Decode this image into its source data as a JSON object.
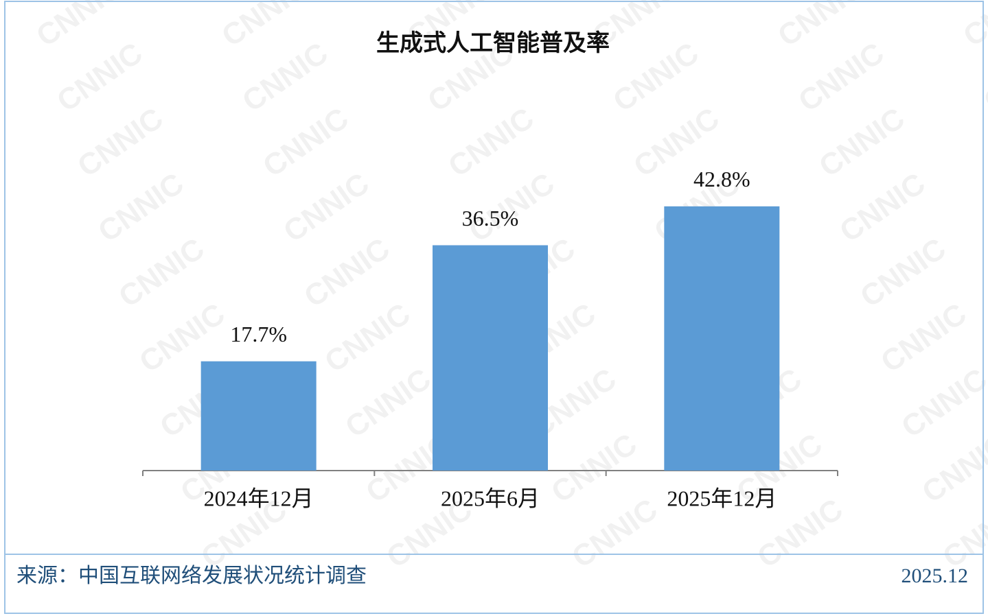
{
  "chart_data": {
    "type": "bar",
    "title": "生成式人工智能普及率",
    "categories": [
      "2024年12月",
      "2025年6月",
      "2025年12月"
    ],
    "values": [
      17.7,
      36.5,
      42.8
    ],
    "value_labels": [
      "17.7%",
      "36.5%",
      "42.8%"
    ],
    "color": "#5b9bd5",
    "source": "来源：中国互联网络发展状况统计调查",
    "date": "2025.12",
    "watermark": "CNNIC"
  }
}
